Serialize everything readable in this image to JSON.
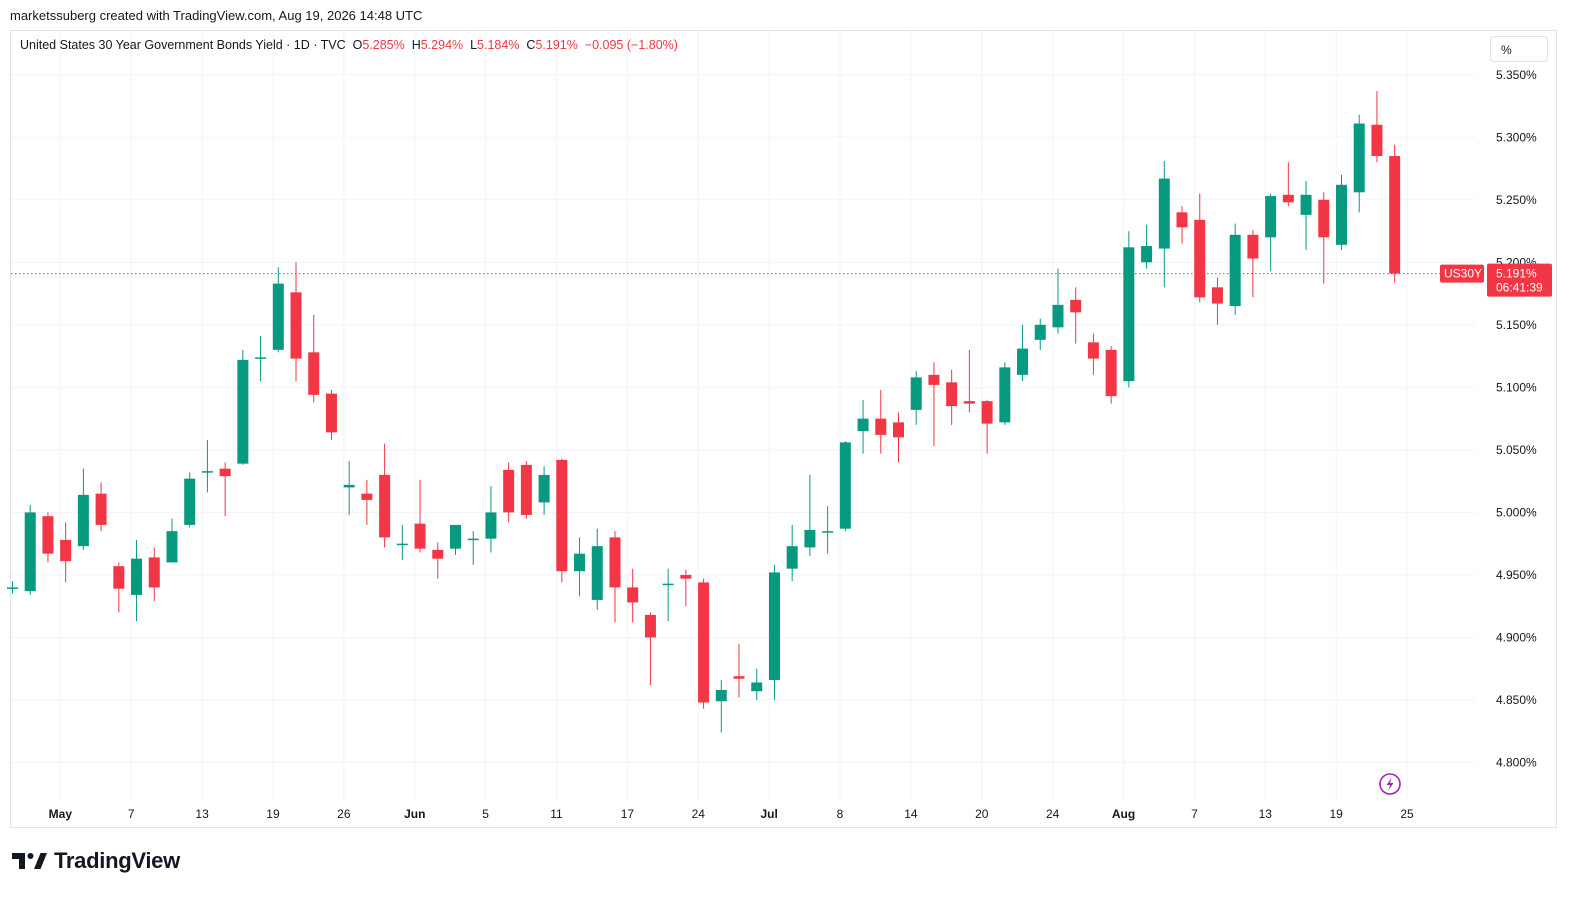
{
  "header": {
    "attribution": "marketssuberg created with TradingView.com, Aug 19, 2026 14:48 UTC"
  },
  "legend": {
    "symbol_text": "United States 30 Year Government Bonds Yield · 1D · TVC",
    "open_label": "O",
    "open_value": "5.285%",
    "high_label": "H",
    "high_value": "5.294%",
    "low_label": "L",
    "low_value": "5.184%",
    "close_label": "C",
    "close_value": "5.191%",
    "change": "−0.095 (−1.80%)"
  },
  "scale_button": "%",
  "price_tag": {
    "symbol": "US30Y",
    "price": "5.191%",
    "countdown": "06:41:39"
  },
  "footer": {
    "logo_text": "TradingView"
  },
  "icons": {
    "flash": "lightning-icon",
    "logo": "tradingview-logo-icon"
  },
  "colors": {
    "up": "#089981",
    "down": "#f23645",
    "grid": "#f0f3fa",
    "text": "#131722",
    "marker": "#9c27b0"
  },
  "chart_data": {
    "type": "candlestick",
    "title": "United States 30 Year Government Bonds Yield",
    "interval": "1D",
    "source": "TVC",
    "y_unit": "%",
    "ylim": [
      4.77,
      5.385
    ],
    "y_ticks": [
      "5.350%",
      "5.300%",
      "5.250%",
      "5.200%",
      "5.150%",
      "5.100%",
      "5.050%",
      "5.000%",
      "4.950%",
      "4.900%",
      "4.850%",
      "4.800%"
    ],
    "x_ticks": [
      "May",
      "7",
      "13",
      "19",
      "26",
      "Jun",
      "5",
      "11",
      "17",
      "24",
      "Jul",
      "8",
      "14",
      "20",
      "24",
      "Aug",
      "7",
      "13",
      "19",
      "25"
    ],
    "current_price": 5.191,
    "grid": true,
    "candles": [
      {
        "o": 4.94,
        "h": 4.945,
        "l": 4.935,
        "c": 4.94
      },
      {
        "o": 4.937,
        "h": 5.006,
        "l": 4.934,
        "c": 5.0
      },
      {
        "o": 4.997,
        "h": 5.0,
        "l": 4.96,
        "c": 4.967
      },
      {
        "o": 4.978,
        "h": 4.992,
        "l": 4.944,
        "c": 4.961
      },
      {
        "o": 4.973,
        "h": 5.035,
        "l": 4.97,
        "c": 5.014
      },
      {
        "o": 5.015,
        "h": 5.024,
        "l": 4.985,
        "c": 4.99
      },
      {
        "o": 4.957,
        "h": 4.96,
        "l": 4.92,
        "c": 4.939
      },
      {
        "o": 4.934,
        "h": 4.978,
        "l": 4.913,
        "c": 4.963
      },
      {
        "o": 4.964,
        "h": 4.972,
        "l": 4.929,
        "c": 4.94
      },
      {
        "o": 4.96,
        "h": 4.995,
        "l": 4.96,
        "c": 4.985
      },
      {
        "o": 4.99,
        "h": 5.032,
        "l": 4.988,
        "c": 5.027
      },
      {
        "o": 5.033,
        "h": 5.058,
        "l": 5.016,
        "c": 5.033
      },
      {
        "o": 5.035,
        "h": 5.04,
        "l": 4.997,
        "c": 5.029
      },
      {
        "o": 5.039,
        "h": 5.13,
        "l": 5.038,
        "c": 5.122
      },
      {
        "o": 5.124,
        "h": 5.141,
        "l": 5.105,
        "c": 5.124
      },
      {
        "o": 5.13,
        "h": 5.196,
        "l": 5.128,
        "c": 5.183
      },
      {
        "o": 5.176,
        "h": 5.2,
        "l": 5.105,
        "c": 5.123
      },
      {
        "o": 5.128,
        "h": 5.158,
        "l": 5.088,
        "c": 5.094
      },
      {
        "o": 5.095,
        "h": 5.098,
        "l": 5.058,
        "c": 5.064
      },
      {
        "o": 5.02,
        "h": 5.041,
        "l": 4.998,
        "c": 5.022
      },
      {
        "o": 5.015,
        "h": 5.026,
        "l": 4.99,
        "c": 5.01
      },
      {
        "o": 5.03,
        "h": 5.055,
        "l": 4.972,
        "c": 4.98
      },
      {
        "o": 4.975,
        "h": 4.99,
        "l": 4.962,
        "c": 4.975
      },
      {
        "o": 4.991,
        "h": 5.026,
        "l": 4.968,
        "c": 4.971
      },
      {
        "o": 4.97,
        "h": 4.976,
        "l": 4.947,
        "c": 4.963
      },
      {
        "o": 4.971,
        "h": 4.99,
        "l": 4.966,
        "c": 4.99
      },
      {
        "o": 4.979,
        "h": 4.985,
        "l": 4.958,
        "c": 4.979
      },
      {
        "o": 4.979,
        "h": 5.021,
        "l": 4.968,
        "c": 5.0
      },
      {
        "o": 5.034,
        "h": 5.04,
        "l": 4.992,
        "c": 5.0
      },
      {
        "o": 5.038,
        "h": 5.041,
        "l": 4.995,
        "c": 4.998
      },
      {
        "o": 5.008,
        "h": 5.037,
        "l": 4.998,
        "c": 5.03
      },
      {
        "o": 5.042,
        "h": 5.043,
        "l": 4.944,
        "c": 4.953
      },
      {
        "o": 4.953,
        "h": 4.98,
        "l": 4.933,
        "c": 4.967
      },
      {
        "o": 4.93,
        "h": 4.987,
        "l": 4.922,
        "c": 4.973
      },
      {
        "o": 4.98,
        "h": 4.985,
        "l": 4.912,
        "c": 4.94
      },
      {
        "o": 4.94,
        "h": 4.955,
        "l": 4.912,
        "c": 4.928
      },
      {
        "o": 4.918,
        "h": 4.92,
        "l": 4.862,
        "c": 4.9
      },
      {
        "o": 4.943,
        "h": 4.955,
        "l": 4.913,
        "c": 4.943
      },
      {
        "o": 4.95,
        "h": 4.954,
        "l": 4.925,
        "c": 4.947
      },
      {
        "o": 4.944,
        "h": 4.947,
        "l": 4.843,
        "c": 4.848
      },
      {
        "o": 4.849,
        "h": 4.866,
        "l": 4.824,
        "c": 4.858
      },
      {
        "o": 4.869,
        "h": 4.895,
        "l": 4.852,
        "c": 4.867
      },
      {
        "o": 4.857,
        "h": 4.875,
        "l": 4.85,
        "c": 4.864
      },
      {
        "o": 4.866,
        "h": 4.958,
        "l": 4.85,
        "c": 4.952
      },
      {
        "o": 4.955,
        "h": 4.99,
        "l": 4.945,
        "c": 4.973
      },
      {
        "o": 4.972,
        "h": 5.03,
        "l": 4.965,
        "c": 4.986
      },
      {
        "o": 4.985,
        "h": 5.005,
        "l": 4.967,
        "c": 4.985
      },
      {
        "o": 4.987,
        "h": 5.057,
        "l": 4.985,
        "c": 5.056
      },
      {
        "o": 5.065,
        "h": 5.09,
        "l": 5.047,
        "c": 5.075
      },
      {
        "o": 5.075,
        "h": 5.098,
        "l": 5.047,
        "c": 5.062
      },
      {
        "o": 5.072,
        "h": 5.08,
        "l": 5.04,
        "c": 5.06
      },
      {
        "o": 5.082,
        "h": 5.113,
        "l": 5.07,
        "c": 5.108
      },
      {
        "o": 5.11,
        "h": 5.12,
        "l": 5.053,
        "c": 5.102
      },
      {
        "o": 5.104,
        "h": 5.114,
        "l": 5.07,
        "c": 5.085
      },
      {
        "o": 5.089,
        "h": 5.13,
        "l": 5.08,
        "c": 5.087
      },
      {
        "o": 5.089,
        "h": 5.09,
        "l": 5.047,
        "c": 5.071
      },
      {
        "o": 5.072,
        "h": 5.12,
        "l": 5.07,
        "c": 5.116
      },
      {
        "o": 5.11,
        "h": 5.15,
        "l": 5.105,
        "c": 5.131
      },
      {
        "o": 5.138,
        "h": 5.155,
        "l": 5.13,
        "c": 5.15
      },
      {
        "o": 5.148,
        "h": 5.195,
        "l": 5.143,
        "c": 5.166
      },
      {
        "o": 5.17,
        "h": 5.18,
        "l": 5.135,
        "c": 5.16
      },
      {
        "o": 5.136,
        "h": 5.143,
        "l": 5.11,
        "c": 5.123
      },
      {
        "o": 5.13,
        "h": 5.133,
        "l": 5.087,
        "c": 5.093
      },
      {
        "o": 5.105,
        "h": 5.225,
        "l": 5.1,
        "c": 5.212
      },
      {
        "o": 5.2,
        "h": 5.23,
        "l": 5.195,
        "c": 5.213
      },
      {
        "o": 5.211,
        "h": 5.281,
        "l": 5.18,
        "c": 5.267
      },
      {
        "o": 5.24,
        "h": 5.245,
        "l": 5.215,
        "c": 5.228
      },
      {
        "o": 5.234,
        "h": 5.255,
        "l": 5.168,
        "c": 5.172
      },
      {
        "o": 5.18,
        "h": 5.188,
        "l": 5.15,
        "c": 5.167
      },
      {
        "o": 5.165,
        "h": 5.231,
        "l": 5.158,
        "c": 5.222
      },
      {
        "o": 5.222,
        "h": 5.226,
        "l": 5.172,
        "c": 5.203
      },
      {
        "o": 5.22,
        "h": 5.255,
        "l": 5.193,
        "c": 5.253
      },
      {
        "o": 5.254,
        "h": 5.28,
        "l": 5.245,
        "c": 5.248
      },
      {
        "o": 5.238,
        "h": 5.265,
        "l": 5.21,
        "c": 5.254
      },
      {
        "o": 5.25,
        "h": 5.256,
        "l": 5.183,
        "c": 5.22
      },
      {
        "o": 5.214,
        "h": 5.27,
        "l": 5.21,
        "c": 5.262
      },
      {
        "o": 5.256,
        "h": 5.318,
        "l": 5.24,
        "c": 5.311
      },
      {
        "o": 5.31,
        "h": 5.337,
        "l": 5.28,
        "c": 5.285
      },
      {
        "o": 5.285,
        "h": 5.294,
        "l": 5.184,
        "c": 5.191
      }
    ]
  }
}
